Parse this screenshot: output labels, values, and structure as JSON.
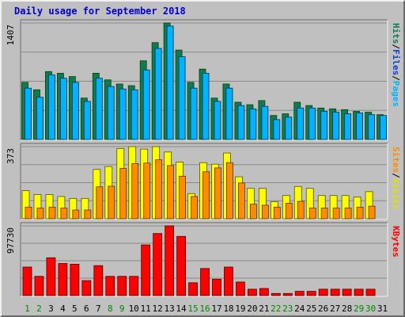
{
  "chart_data": {
    "type": "bar",
    "title": "Daily usage for September 2018",
    "categories": [
      "1",
      "2",
      "3",
      "4",
      "5",
      "6",
      "7",
      "8",
      "9",
      "10",
      "11",
      "12",
      "13",
      "14",
      "15",
      "16",
      "17",
      "18",
      "19",
      "20",
      "21",
      "22",
      "23",
      "24",
      "25",
      "26",
      "27",
      "28",
      "29",
      "30",
      "31"
    ],
    "weekend_days": [
      "1",
      "2",
      "8",
      "9",
      "15",
      "16",
      "22",
      "23",
      "29",
      "30"
    ],
    "colors": {
      "hits": "#117a55",
      "files": "#00b3ff",
      "pages": "#0a6fdc",
      "visits": "#ffff00",
      "sites": "#ff8c00",
      "kbytes": "#ff0000",
      "weekday_label": "#000000",
      "weekend_label": "#008800",
      "title": "#0000cc"
    },
    "panels": [
      {
        "name": "pages-files-hits",
        "ymax_label": "1407",
        "ylim": [
          0,
          1407
        ],
        "legend": [
          {
            "text": "Pages",
            "color": "#00b3ff"
          },
          {
            "text": "/",
            "color": "#000000"
          },
          {
            "text": "Files",
            "color": "#0a3fd0"
          },
          {
            "text": "/",
            "color": "#000000"
          },
          {
            "text": "Hits",
            "color": "#117a55"
          }
        ],
        "series": [
          {
            "name": "Hits",
            "values": [
              690,
              600,
              820,
              800,
              760,
              500,
              800,
              720,
              670,
              650,
              950,
              1170,
              1407,
              1080,
              690,
              850,
              500,
              670,
              450,
              420,
              470,
              290,
              310,
              450,
              410,
              380,
              370,
              360,
              340,
              330,
              300
            ]
          },
          {
            "name": "Files",
            "values": [
              620,
              510,
              780,
              740,
              690,
              460,
              740,
              640,
              610,
              600,
              840,
              1100,
              1370,
              1000,
              620,
              800,
              460,
              620,
              410,
              370,
              400,
              240,
              270,
              380,
              380,
              340,
              330,
              310,
              320,
              300,
              290
            ]
          }
        ]
      },
      {
        "name": "visits-sites",
        "ymax_label": "373",
        "ylim": [
          0,
          373
        ],
        "legend": [
          {
            "text": "Visits",
            "color": "#e0e000"
          },
          {
            "text": "/",
            "color": "#000000"
          },
          {
            "text": "Sites",
            "color": "#ff8c00"
          }
        ],
        "series": [
          {
            "name": "Visits",
            "values": [
              145,
              125,
              125,
              115,
              105,
              105,
              255,
              270,
              363,
              373,
              360,
              373,
              345,
              293,
              130,
              290,
              282,
              340,
              217,
              157,
              157,
              88,
              120,
              167,
              157,
              120,
              120,
              120,
              112,
              140,
              null
            ]
          },
          {
            "name": "Sites",
            "values": [
              60,
              55,
              60,
              55,
              45,
              45,
              165,
              168,
              260,
              285,
              288,
              305,
              275,
              220,
              115,
              243,
              263,
              290,
              185,
              75,
              70,
              60,
              80,
              90,
              55,
              55,
              55,
              55,
              60,
              65,
              null
            ]
          }
        ]
      },
      {
        "name": "kbytes",
        "ymax_label": "97730",
        "ylim": [
          0,
          97730
        ],
        "legend": [
          {
            "text": "KBytes",
            "color": "#ff0000"
          }
        ],
        "series": [
          {
            "name": "KBytes",
            "values": [
              40000,
              27000,
              53000,
              45000,
              44000,
              21000,
              42000,
              27000,
              27000,
              27000,
              71000,
              87000,
              97730,
              83000,
              18000,
              38000,
              23000,
              40000,
              19000,
              9000,
              10000,
              3000,
              3000,
              6000,
              6000,
              9000,
              9000,
              9000,
              9000,
              9000,
              null
            ]
          }
        ]
      }
    ]
  }
}
